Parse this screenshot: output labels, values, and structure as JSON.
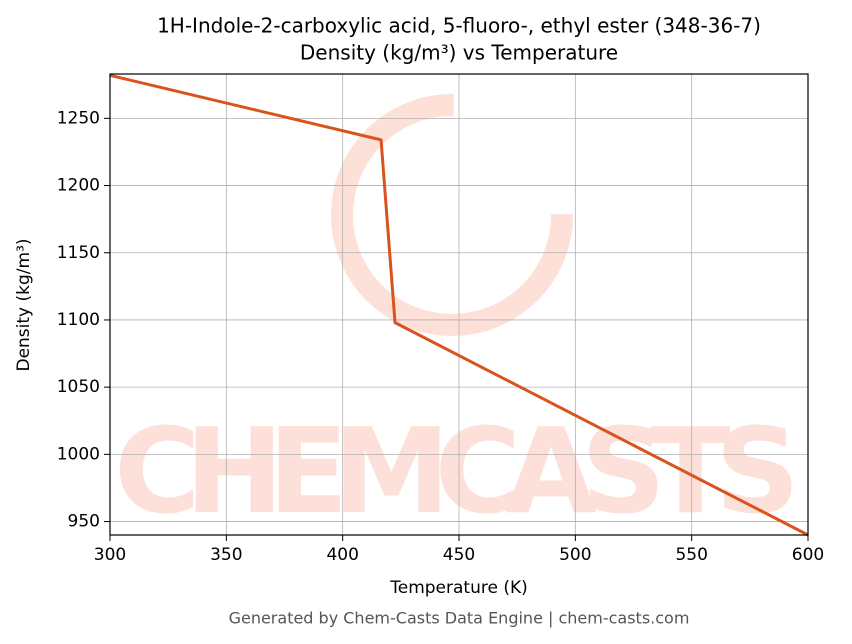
{
  "chart_data": {
    "type": "line",
    "title": "1H-Indole-2-carboxylic acid, 5-fluoro-, ethyl ester (348-36-7)",
    "subtitle": "Density (kg/m³) vs Temperature",
    "x_label": "Temperature (K)",
    "y_label": "Density (kg/m³)",
    "watermark": "CHEMCASTS",
    "footer": "Generated by Chem-Casts Data Engine | chem-casts.com",
    "x": [
      300,
      416.5,
      422.5,
      600
    ],
    "series": [
      {
        "color": "#d9531e",
        "values": [
          1282,
          1234,
          1098,
          940
        ]
      }
    ],
    "xlim": [
      300,
      600
    ],
    "ylim": [
      940,
      1283
    ],
    "xticks": [
      300,
      350,
      400,
      450,
      500,
      550,
      600
    ],
    "yticks": [
      950,
      1000,
      1050,
      1100,
      1150,
      1200,
      1250
    ],
    "grid": true
  }
}
